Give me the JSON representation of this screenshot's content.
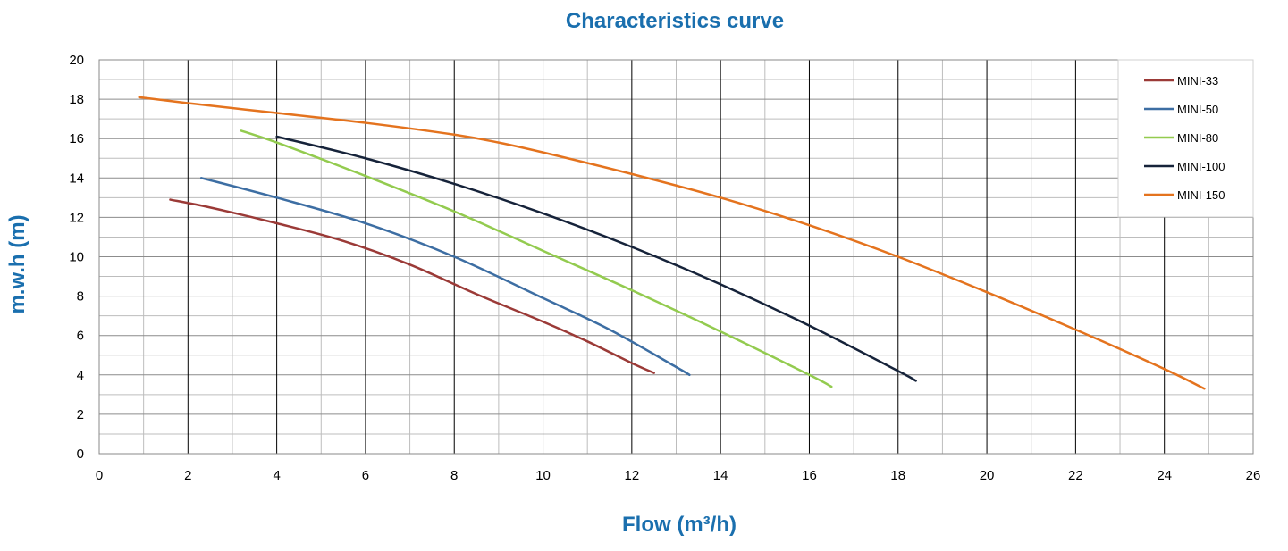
{
  "chart_data": {
    "type": "line",
    "title": "Characteristics curve",
    "xlabel": "Flow (m³/h)",
    "ylabel": "m.w.h (m)",
    "xlim": [
      0,
      26
    ],
    "ylim": [
      0,
      20
    ],
    "xticks": [
      0,
      2,
      4,
      6,
      8,
      10,
      12,
      14,
      16,
      18,
      20,
      22,
      24,
      26
    ],
    "yticks": [
      0,
      2,
      4,
      6,
      8,
      10,
      12,
      14,
      16,
      18,
      20
    ],
    "grid": true,
    "legend_position": "top-right",
    "series": [
      {
        "name": "MINI-33",
        "color": "#9b3a37",
        "x": [
          1.6,
          2.5,
          4,
          5.5,
          7,
          8.5,
          10,
          11,
          12,
          12.5
        ],
        "y": [
          12.9,
          12.5,
          11.7,
          10.8,
          9.6,
          8.1,
          6.7,
          5.7,
          4.6,
          4.1
        ]
      },
      {
        "name": "MINI-50",
        "color": "#3d6ea3",
        "x": [
          2.3,
          4,
          6,
          8,
          10,
          11.5,
          13,
          13.3
        ],
        "y": [
          14.0,
          13.0,
          11.7,
          10.0,
          7.9,
          6.3,
          4.4,
          4.0
        ]
      },
      {
        "name": "MINI-80",
        "color": "#93cb4f",
        "x": [
          3.2,
          4,
          6,
          8,
          10,
          12,
          14,
          16,
          16.5
        ],
        "y": [
          16.4,
          15.8,
          14.1,
          12.3,
          10.3,
          8.3,
          6.2,
          4.0,
          3.4
        ]
      },
      {
        "name": "MINI-100",
        "color": "#16233a",
        "x": [
          4,
          6,
          8,
          10,
          12,
          14,
          16,
          18,
          18.4
        ],
        "y": [
          16.1,
          15.0,
          13.7,
          12.2,
          10.5,
          8.6,
          6.5,
          4.2,
          3.7
        ]
      },
      {
        "name": "MINI-150",
        "color": "#e4731e",
        "x": [
          0.9,
          2,
          4,
          6,
          8,
          9,
          10,
          12,
          14,
          16,
          18,
          20,
          22,
          24,
          24.9
        ],
        "y": [
          18.1,
          17.8,
          17.3,
          16.8,
          16.2,
          15.8,
          15.3,
          14.2,
          13.0,
          11.6,
          10.0,
          8.2,
          6.3,
          4.3,
          3.3
        ]
      }
    ]
  }
}
